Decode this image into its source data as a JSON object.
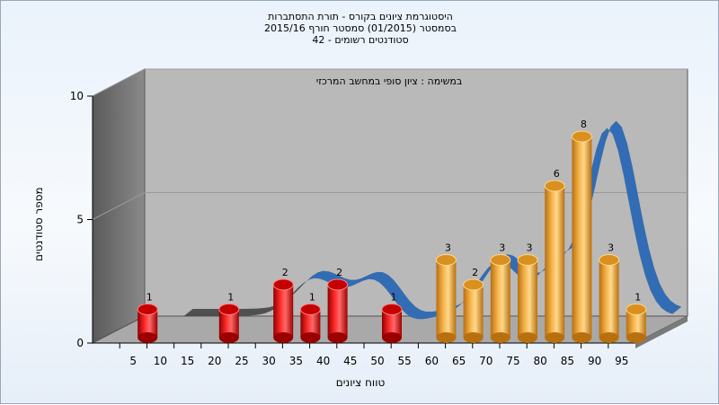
{
  "header": {
    "title_line1": "היסטוגרמת ציונים בקורס - תורת התסתברות",
    "title_line2": "בסמסטר  (01/2015)  סמסטר חורף 2015/16",
    "title_line3": "סטודנטים רשומים - 42"
  },
  "chart_data": {
    "type": "bar",
    "annotation": "במשימה : ציון סופי במחשב המרכזי",
    "xlabel": "טווח ציונים",
    "ylabel": "מספר סטודנטים",
    "ylim": [
      0,
      10
    ],
    "y_ticks": [
      0,
      5,
      10
    ],
    "x_tick_labels": [
      "5",
      "10",
      "15",
      "20",
      "25",
      "30",
      "35",
      "40",
      "45",
      "50",
      "55",
      "60",
      "65",
      "70",
      "75",
      "80",
      "85",
      "90",
      "95"
    ],
    "grid": true,
    "bars": [
      {
        "x": 5,
        "value": 1,
        "color": "#e81010"
      },
      {
        "x": 20,
        "value": 1,
        "color": "#e81010"
      },
      {
        "x": 30,
        "value": 2,
        "color": "#e81010"
      },
      {
        "x": 35,
        "value": 1,
        "color": "#e81010"
      },
      {
        "x": 40,
        "value": 2,
        "color": "#e81010"
      },
      {
        "x": 50,
        "value": 1,
        "color": "#e81010"
      },
      {
        "x": 60,
        "value": 3,
        "color": "#f0a830"
      },
      {
        "x": 65,
        "value": 2,
        "color": "#f0a830"
      },
      {
        "x": 70,
        "value": 3,
        "color": "#f0a830"
      },
      {
        "x": 75,
        "value": 3,
        "color": "#f0a830"
      },
      {
        "x": 80,
        "value": 6,
        "color": "#f0a830"
      },
      {
        "x": 85,
        "value": 8,
        "color": "#f0a830"
      },
      {
        "x": 90,
        "value": 3,
        "color": "#f0a830"
      },
      {
        "x": 95,
        "value": 1,
        "color": "#f0a830"
      }
    ],
    "colors": {
      "fail": "#e81010",
      "pass": "#f0a830",
      "curve_dark": "#555555",
      "curve_blue": "#2f6fbf"
    }
  }
}
